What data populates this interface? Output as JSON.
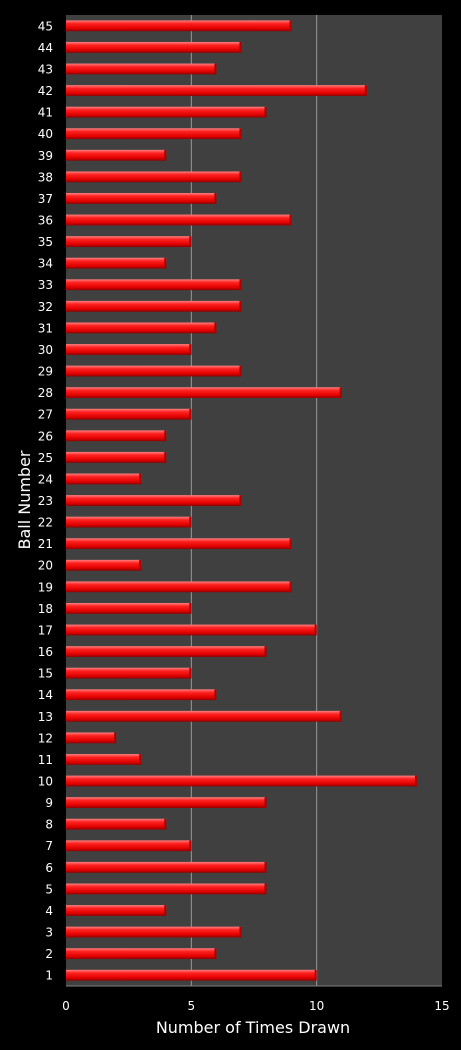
{
  "chart_data": {
    "type": "bar",
    "orientation": "horizontal",
    "title": "",
    "xlabel": "Number of Times Drawn",
    "ylabel": "Ball Number",
    "xlim": [
      0,
      15
    ],
    "x_ticks": [
      "0",
      "5",
      "10",
      "15"
    ],
    "grid": "vertical",
    "categories": [
      "1",
      "2",
      "3",
      "4",
      "5",
      "6",
      "7",
      "8",
      "9",
      "10",
      "11",
      "12",
      "13",
      "14",
      "15",
      "16",
      "17",
      "18",
      "19",
      "20",
      "21",
      "22",
      "23",
      "24",
      "25",
      "26",
      "27",
      "28",
      "29",
      "30",
      "31",
      "32",
      "33",
      "34",
      "35",
      "36",
      "37",
      "38",
      "39",
      "40",
      "41",
      "42",
      "43",
      "44",
      "45"
    ],
    "values": [
      10,
      6,
      7,
      4,
      8,
      8,
      5,
      4,
      8,
      14,
      3,
      2,
      11,
      6,
      5,
      8,
      10,
      5,
      9,
      3,
      9,
      5,
      7,
      3,
      4,
      4,
      5,
      11,
      7,
      5,
      6,
      7,
      7,
      4,
      5,
      9,
      6,
      7,
      4,
      7,
      8,
      12,
      6,
      7,
      9
    ],
    "colors": {
      "background": "#000000",
      "plot_area": "#404040",
      "bar": "#ff1a1a",
      "bar_dark": "#a80000",
      "bar_light": "#ff7070",
      "grid": "#9a9a9a",
      "text": "#ffffff"
    }
  }
}
